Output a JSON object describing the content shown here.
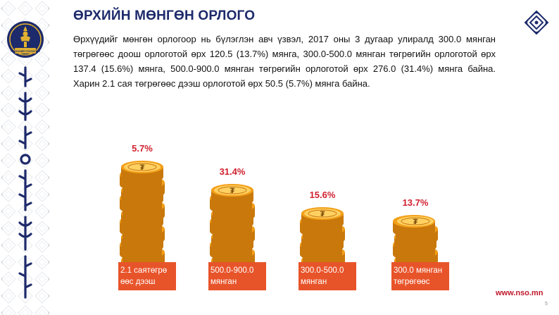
{
  "title": "ӨРХИЙН МӨНГӨН ОРЛОГО",
  "paragraph": "Өрхүүдийг мөнгөн орлогоор нь бүлэглэн авч үзвэл, 2017 оны 3 дугаар улиралд 300.0 мянган төгрөгөөс доош орлоготой өрх 120.5 (13.7%) мянга, 300.0-500.0 мянган төгрөгийн орлоготой өрх 137.4 (15.6%) мянга, 500.0-900.0 мянган төгрөгийн орлоготой өрх 276.0 (31.4%) мянга байна. Харин 2.1 сая төгрөгөөс дээш орлоготой өрх 50.5 (5.7%) мянга байна.",
  "logo_text": "ҮНДЭСНИЙ СТАТИСТИК",
  "footer_url": "www.nso.mn",
  "page_number": "5",
  "colors": {
    "title": "#1d2a6b",
    "percent": "#d0202e",
    "label_bg": "#e8542a",
    "coin": "#f2a01a",
    "coin_dark": "#c9780c",
    "coin_light": "#ffd062"
  },
  "chart_data": {
    "type": "bar",
    "categories": [
      "2.1 саятөгрөгөөс дээш",
      "500.0-900.0 мянган",
      "300.0-500.0 мянган",
      "300.0 мянган төгрөгөөс"
    ],
    "category_lines": [
      [
        "2.1 саятөгрө",
        "өөс дээш"
      ],
      [
        "500.0-900.0",
        "мянган"
      ],
      [
        "300.0-500.0",
        "мянган"
      ],
      [
        "300.0 мянган",
        "төгрөгөөс"
      ]
    ],
    "values_label": [
      "5.7%",
      "31.4%",
      "15.6%",
      "13.7%"
    ],
    "values": [
      5.7,
      31.4,
      15.6,
      13.7
    ],
    "stack_coins": [
      13,
      10,
      7,
      6
    ],
    "title": "",
    "xlabel": "",
    "ylabel": ""
  }
}
